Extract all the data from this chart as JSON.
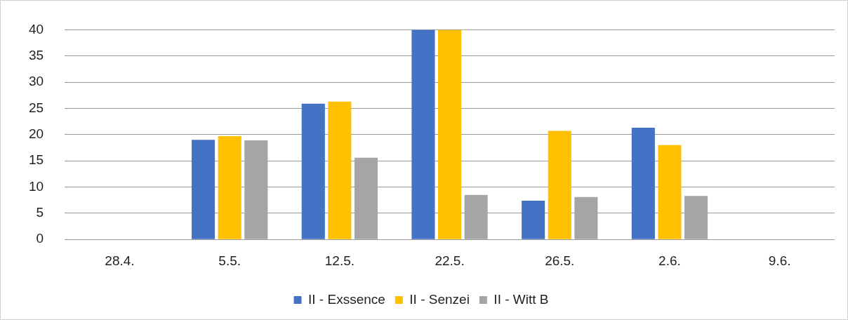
{
  "chart_data": {
    "type": "bar",
    "categories": [
      "28.4.",
      "5.5.",
      "12.5.",
      "22.5.",
      "26.5.",
      "2.6.",
      "9.6."
    ],
    "series": [
      {
        "name": "II - Exssence",
        "color": "#4472c4",
        "values": [
          null,
          19.0,
          25.9,
          40,
          7.4,
          21.3,
          null
        ]
      },
      {
        "name": "II - Senzei",
        "color": "#ffc000",
        "values": [
          null,
          19.7,
          26.3,
          40,
          20.7,
          18.0,
          null
        ]
      },
      {
        "name": "II - Witt B",
        "color": "#a5a5a5",
        "values": [
          null,
          18.9,
          15.6,
          8.5,
          8.1,
          8.3,
          null
        ]
      }
    ],
    "ylim": [
      0,
      40
    ],
    "yticks": [
      0,
      5,
      10,
      15,
      20,
      25,
      30,
      35,
      40
    ],
    "grid": "y",
    "legend": "bottom"
  }
}
